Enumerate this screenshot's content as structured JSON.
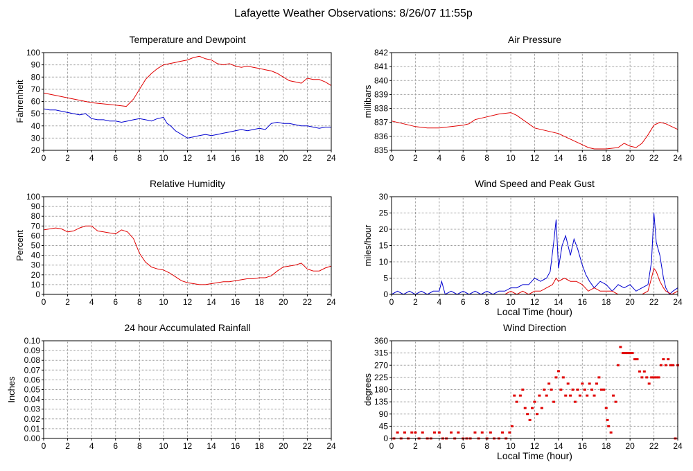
{
  "page": {
    "title": "Lafayette Weather Observations: 8/26/07 11:55p"
  },
  "colors": {
    "red": "#e00000",
    "blue": "#0000d0",
    "grid": "#999999"
  },
  "chart_data": [
    {
      "id": "temp",
      "type": "line",
      "title": "Temperature and Dewpoint",
      "ylabel": "Fahrenheit",
      "xlabel": "",
      "xlim": [
        0,
        24
      ],
      "ylim": [
        20,
        100
      ],
      "xticks": [
        0,
        2,
        4,
        6,
        8,
        10,
        12,
        14,
        16,
        18,
        20,
        22,
        24
      ],
      "yticks": [
        20,
        30,
        40,
        50,
        60,
        70,
        80,
        90,
        100
      ],
      "grid": true,
      "series": [
        {
          "color": "red",
          "x": [
            0,
            1,
            2,
            3,
            4,
            5,
            6,
            6.9,
            7.5,
            8,
            8.5,
            9,
            9.5,
            10,
            10.5,
            11,
            11.5,
            12,
            12.5,
            13,
            13.5,
            14,
            14.5,
            15,
            15.5,
            16,
            16.5,
            17,
            17.5,
            18,
            18.5,
            19,
            19.5,
            20,
            20.5,
            21,
            21.5,
            22,
            22.5,
            23,
            23.5,
            24
          ],
          "y": [
            67,
            65,
            63,
            61,
            59,
            58,
            57,
            56,
            62,
            70,
            78,
            83,
            87,
            90,
            91,
            92,
            93,
            94,
            96,
            97,
            95,
            94,
            91,
            90,
            91,
            89,
            88,
            89,
            88,
            87,
            86,
            85,
            83,
            80,
            77,
            76,
            75,
            79,
            78,
            78,
            76,
            73
          ]
        },
        {
          "color": "blue",
          "x": [
            0,
            0.5,
            1,
            1.5,
            2,
            2.5,
            3,
            3.5,
            4,
            4.5,
            5,
            5.5,
            6,
            6.5,
            7,
            7.5,
            8,
            8.5,
            9,
            9.5,
            10,
            10.3,
            10.6,
            11,
            11.5,
            12,
            12.5,
            13,
            13.5,
            14,
            14.5,
            15,
            15.5,
            16,
            16.5,
            17,
            17.5,
            18,
            18.5,
            19,
            19.5,
            20,
            20.5,
            21,
            21.5,
            22,
            22.5,
            23,
            23.5,
            24
          ],
          "y": [
            54,
            53,
            53,
            52,
            51,
            50,
            49,
            50,
            46,
            45,
            45,
            44,
            44,
            43,
            44,
            45,
            46,
            45,
            44,
            46,
            47,
            42,
            40,
            36,
            33,
            30,
            31,
            32,
            33,
            32,
            33,
            34,
            35,
            36,
            37,
            36,
            37,
            38,
            37,
            42,
            43,
            42,
            42,
            41,
            40,
            40,
            39,
            38,
            39,
            39
          ]
        }
      ]
    },
    {
      "id": "pressure",
      "type": "line",
      "title": "Air Pressure",
      "ylabel": "millibars",
      "xlabel": "",
      "xlim": [
        0,
        24
      ],
      "ylim": [
        835,
        842
      ],
      "xticks": [
        0,
        2,
        4,
        6,
        8,
        10,
        12,
        14,
        16,
        18,
        20,
        22,
        24
      ],
      "yticks": [
        835,
        836,
        837,
        838,
        839,
        840,
        841,
        842
      ],
      "grid": true,
      "series": [
        {
          "color": "red",
          "x": [
            0,
            0.5,
            1,
            1.5,
            2,
            3,
            4,
            5,
            6,
            6.5,
            7,
            8,
            9,
            10,
            10.5,
            11,
            12,
            13,
            14,
            14.5,
            15,
            15.5,
            16,
            16.5,
            17,
            18,
            19,
            19.5,
            20,
            20.5,
            21,
            21.5,
            22,
            22.5,
            23,
            23.5,
            24
          ],
          "y": [
            837.1,
            837.0,
            836.9,
            836.8,
            836.7,
            836.6,
            836.6,
            836.7,
            836.8,
            836.9,
            837.2,
            837.4,
            837.6,
            837.7,
            837.5,
            837.2,
            836.6,
            836.4,
            836.2,
            836.0,
            835.8,
            835.6,
            835.4,
            835.2,
            835.1,
            835.1,
            835.2,
            835.5,
            835.3,
            835.2,
            835.5,
            836.1,
            836.8,
            837.0,
            836.9,
            836.7,
            836.5
          ]
        }
      ]
    },
    {
      "id": "humidity",
      "type": "line",
      "title": "Relative Humidity",
      "ylabel": "Percent",
      "xlabel": "",
      "xlim": [
        0,
        24
      ],
      "ylim": [
        0,
        100
      ],
      "xticks": [
        0,
        2,
        4,
        6,
        8,
        10,
        12,
        14,
        16,
        18,
        20,
        22,
        24
      ],
      "yticks": [
        0,
        10,
        20,
        30,
        40,
        50,
        60,
        70,
        80,
        90,
        100
      ],
      "grid": true,
      "series": [
        {
          "color": "red",
          "x": [
            0,
            0.5,
            1,
            1.5,
            2,
            2.5,
            3,
            3.5,
            4,
            4.5,
            5,
            5.5,
            6,
            6.5,
            7,
            7.5,
            8,
            8.5,
            9,
            9.5,
            10,
            10.5,
            11,
            11.5,
            12,
            12.5,
            13,
            13.5,
            14,
            14.5,
            15,
            15.5,
            16,
            16.5,
            17,
            17.5,
            18,
            18.5,
            19,
            19.5,
            20,
            20.5,
            21,
            21.5,
            22,
            22.5,
            23,
            23.5,
            24
          ],
          "y": [
            66,
            67,
            68,
            67,
            64,
            65,
            68,
            70,
            70,
            65,
            64,
            63,
            62,
            66,
            64,
            57,
            42,
            33,
            28,
            26,
            25,
            22,
            18,
            14,
            12,
            11,
            10,
            10,
            11,
            12,
            13,
            13,
            14,
            15,
            16,
            16,
            17,
            17,
            19,
            24,
            28,
            29,
            30,
            32,
            26,
            24,
            24,
            27,
            29
          ]
        }
      ]
    },
    {
      "id": "wind",
      "type": "line",
      "title": "Wind Speed and Peak Gust",
      "ylabel": "miles/hour",
      "xlabel": "Local Time (hour)",
      "xlim": [
        0,
        24
      ],
      "ylim": [
        0,
        30
      ],
      "xticks": [
        0,
        2,
        4,
        6,
        8,
        10,
        12,
        14,
        16,
        18,
        20,
        22,
        24
      ],
      "yticks": [
        0,
        5,
        10,
        15,
        20,
        25,
        30
      ],
      "grid": true,
      "series": [
        {
          "color": "blue",
          "x": [
            0,
            0.5,
            1,
            1.5,
            2,
            2.5,
            3,
            3.5,
            4,
            4.2,
            4.5,
            5,
            5.5,
            6,
            6.5,
            7,
            7.5,
            8,
            8.5,
            9,
            9.5,
            10,
            10.5,
            11,
            11.5,
            12,
            12.5,
            13,
            13.3,
            13.6,
            13.8,
            14,
            14.3,
            14.6,
            15,
            15.3,
            15.6,
            16,
            16.3,
            16.6,
            17,
            17.5,
            18,
            18.5,
            19,
            19.5,
            20,
            20.5,
            21,
            21.5,
            21.8,
            22,
            22.2,
            22.5,
            22.8,
            23,
            23.3,
            23.6,
            24
          ],
          "y": [
            0,
            1,
            0,
            1,
            0,
            1,
            0,
            1,
            1,
            4,
            0,
            1,
            0,
            1,
            0,
            1,
            0,
            1,
            0,
            1,
            1,
            2,
            2,
            3,
            3,
            5,
            4,
            5,
            7,
            16,
            23,
            8,
            15,
            18,
            12,
            17,
            14,
            9,
            6,
            4,
            2,
            4,
            3,
            1,
            3,
            2,
            3,
            1,
            2,
            3,
            10,
            25,
            16,
            12,
            5,
            2,
            0,
            1,
            2
          ]
        },
        {
          "color": "red",
          "x": [
            0,
            9,
            9.5,
            10,
            10.5,
            11,
            11.5,
            12,
            12.5,
            13,
            13.5,
            13.8,
            14,
            14.5,
            15,
            15.5,
            16,
            16.5,
            17,
            17.5,
            18,
            18.5,
            19,
            19.5,
            20,
            20.5,
            21,
            21.5,
            21.8,
            22,
            22.2,
            22.5,
            22.8,
            23,
            23.5,
            24
          ],
          "y": [
            0,
            0,
            0,
            1,
            0,
            1,
            0,
            1,
            1,
            2,
            3,
            5,
            4,
            5,
            4,
            4,
            3,
            1,
            2,
            1,
            1,
            1,
            0,
            0,
            0,
            0,
            0,
            1,
            5,
            8,
            7,
            4,
            2,
            1,
            0,
            1
          ]
        }
      ]
    },
    {
      "id": "rain",
      "type": "line",
      "title": "24 hour Accumulated Rainfall",
      "ylabel": "Inches",
      "xlabel": "",
      "xlim": [
        0,
        24
      ],
      "ylim": [
        0,
        0.1
      ],
      "xticks": [
        0,
        2,
        4,
        6,
        8,
        10,
        12,
        14,
        16,
        18,
        20,
        22,
        24
      ],
      "yticks": [
        "0.00",
        "0.01",
        "0.02",
        "0.03",
        "0.04",
        "0.05",
        "0.06",
        "0.07",
        "0.08",
        "0.09",
        "0.10"
      ],
      "grid": true,
      "series": [
        {
          "color": "red",
          "x": [
            0,
            24
          ],
          "y": [
            0,
            0
          ]
        }
      ]
    },
    {
      "id": "direction",
      "type": "scatter",
      "title": "Wind Direction",
      "ylabel": "degrees",
      "xlabel": "Local Time (hour)",
      "xlim": [
        0,
        24
      ],
      "ylim": [
        0,
        360
      ],
      "xticks": [
        0,
        2,
        4,
        6,
        8,
        10,
        12,
        14,
        16,
        18,
        20,
        22,
        24
      ],
      "yticks": [
        0,
        45,
        90,
        135,
        180,
        225,
        270,
        315,
        360
      ],
      "grid": true,
      "series": [
        {
          "color": "red",
          "x": [
            0.2,
            0.5,
            0.8,
            1.1,
            1.4,
            1.7,
            2.0,
            2.3,
            2.6,
            3.0,
            3.3,
            3.6,
            4.0,
            4.3,
            4.6,
            5.0,
            5.3,
            5.6,
            6.0,
            6.3,
            6.6,
            7.0,
            7.3,
            7.6,
            8.0,
            8.3,
            8.6,
            9.0,
            9.3,
            9.6,
            9.9,
            10.1,
            10.3,
            10.5,
            10.8,
            11.0,
            11.2,
            11.4,
            11.6,
            11.8,
            12.0,
            12.2,
            12.4,
            12.6,
            12.8,
            13.0,
            13.2,
            13.4,
            13.6,
            13.8,
            14.0,
            14.2,
            14.4,
            14.6,
            14.8,
            15.0,
            15.2,
            15.4,
            15.6,
            15.8,
            16.0,
            16.2,
            16.4,
            16.6,
            16.8,
            17.0,
            17.2,
            17.4,
            17.6,
            17.8,
            18.0,
            18.1,
            18.2,
            18.4,
            18.6,
            18.8,
            19.0,
            19.2,
            19.4,
            19.6,
            19.8,
            20.0,
            20.2,
            20.4,
            20.6,
            20.8,
            21.0,
            21.2,
            21.4,
            21.6,
            21.8,
            22.0,
            22.2,
            22.4,
            22.6,
            22.8,
            23.0,
            23.2,
            23.4,
            23.6,
            23.8,
            24.0
          ],
          "y": [
            0,
            22,
            0,
            22,
            0,
            22,
            22,
            0,
            22,
            0,
            0,
            22,
            22,
            0,
            0,
            22,
            0,
            22,
            0,
            0,
            0,
            22,
            0,
            22,
            0,
            22,
            0,
            0,
            22,
            0,
            22,
            45,
            158,
            135,
            158,
            180,
            112,
            90,
            68,
            112,
            135,
            90,
            158,
            112,
            180,
            158,
            202,
            180,
            135,
            225,
            248,
            180,
            225,
            158,
            202,
            158,
            180,
            135,
            180,
            158,
            202,
            180,
            158,
            202,
            180,
            158,
            202,
            225,
            180,
            180,
            112,
            68,
            45,
            22,
            158,
            135,
            270,
            337,
            315,
            315,
            315,
            315,
            315,
            292,
            292,
            247,
            225,
            247,
            225,
            202,
            225,
            225,
            225,
            225,
            270,
            292,
            270,
            292,
            270,
            270,
            0,
            270
          ]
        }
      ]
    }
  ]
}
